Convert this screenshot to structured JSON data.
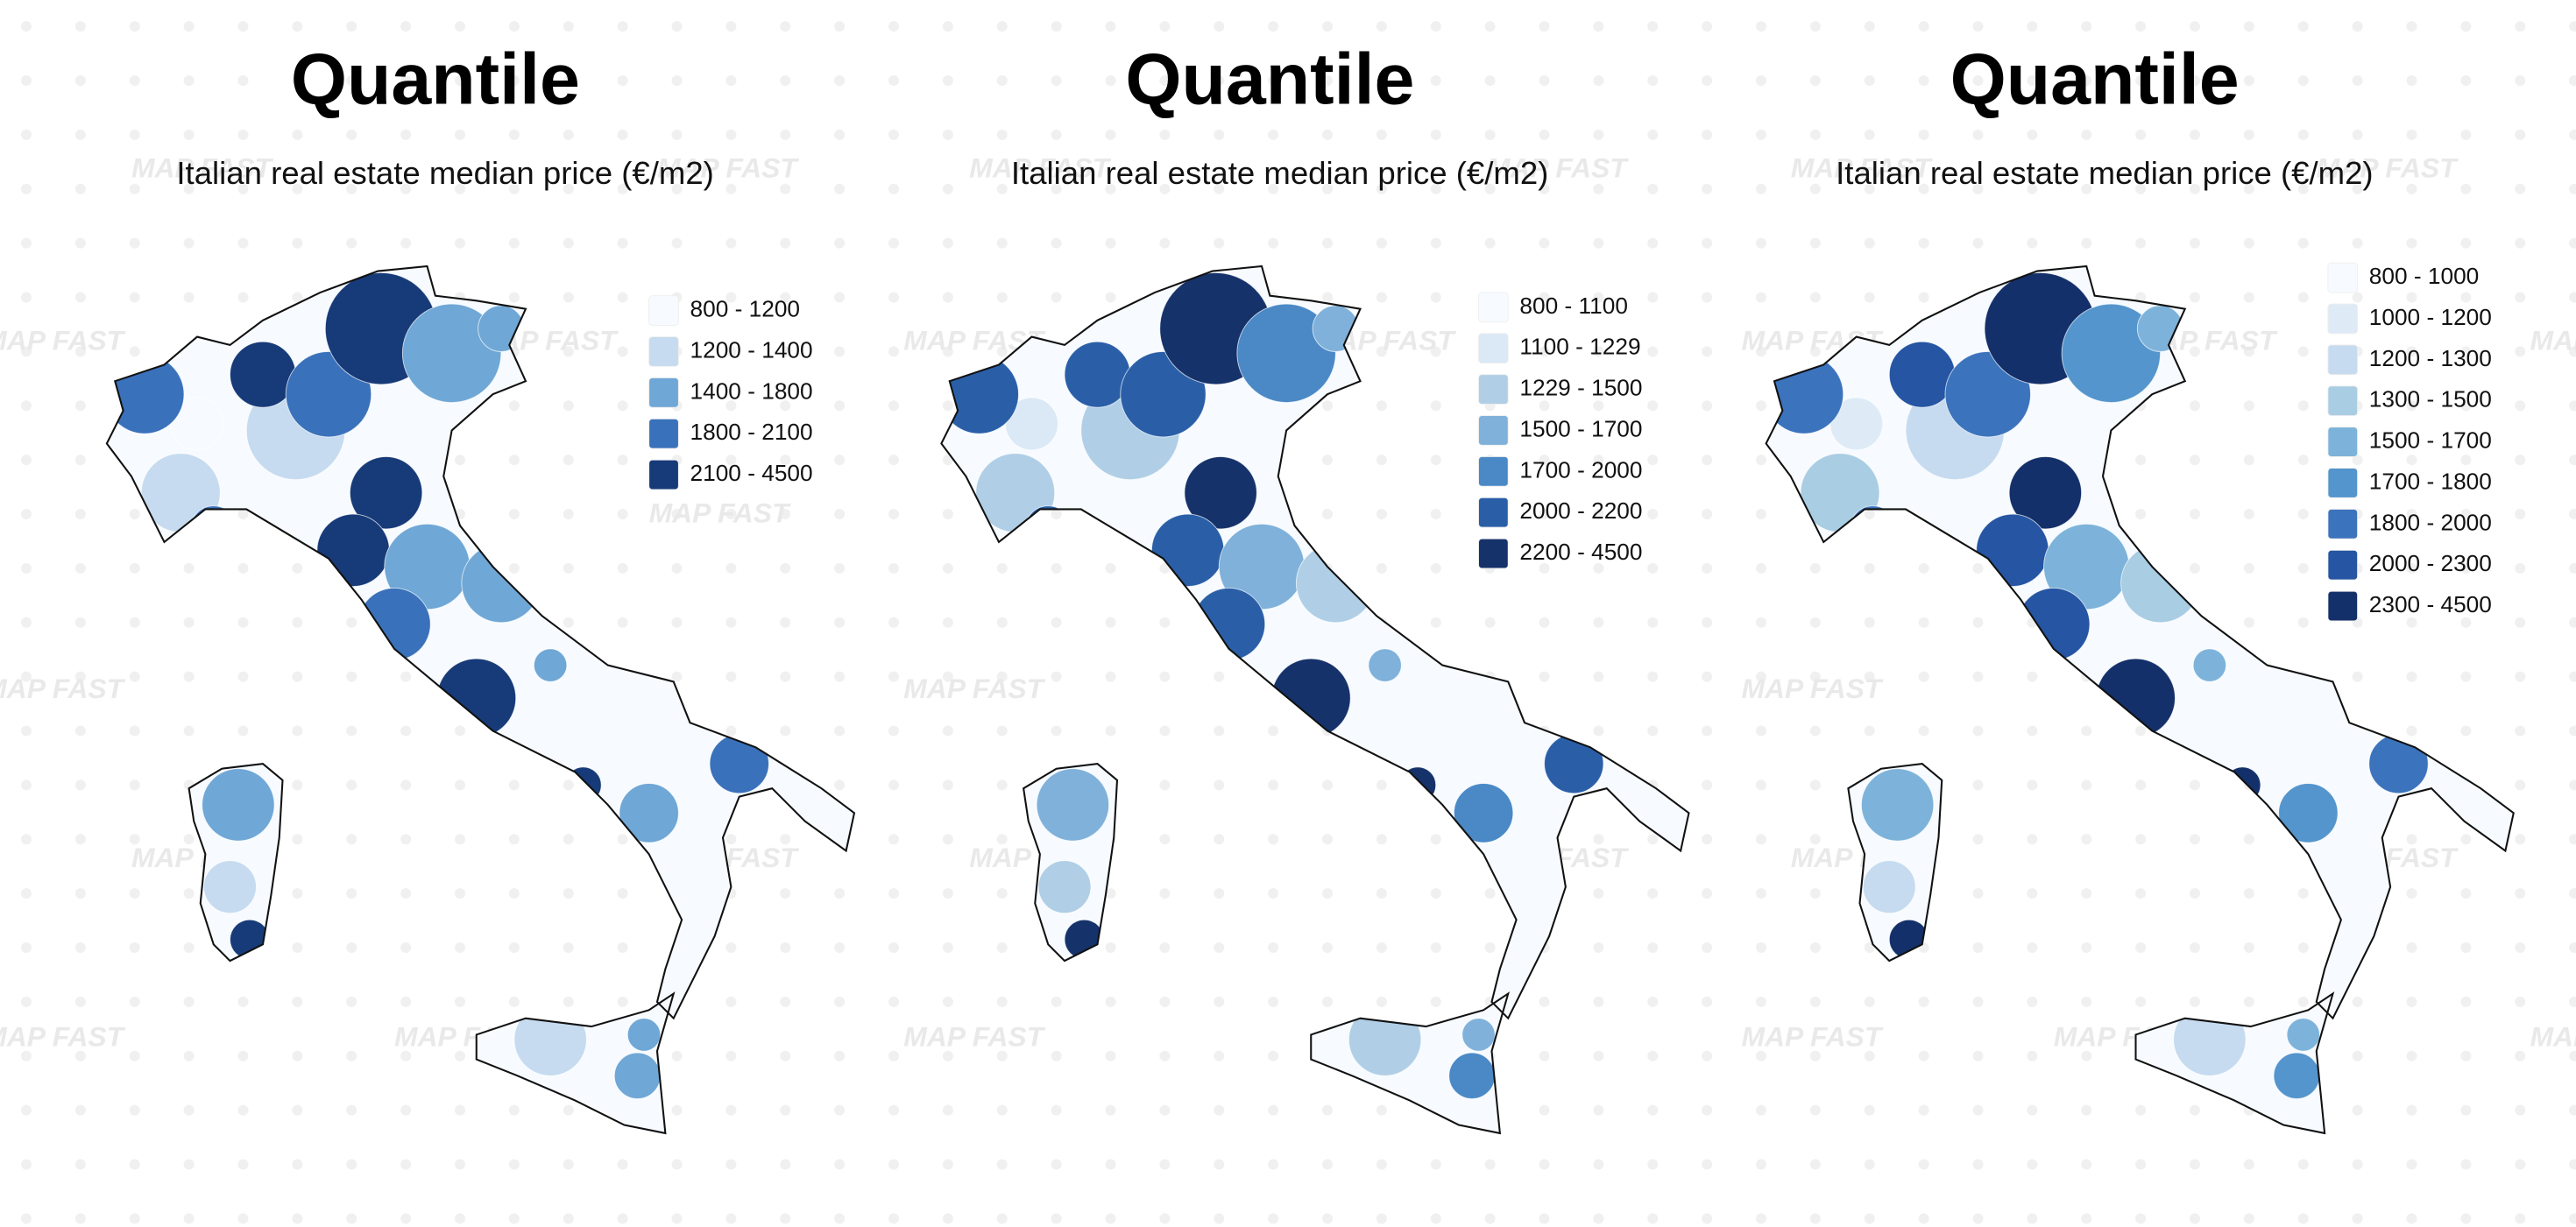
{
  "watermark": "MAP FAST",
  "panels": [
    {
      "title": "Quantile",
      "subtitle": "Italian real estate median price (€/m2)",
      "legend": [
        {
          "label": "800 - 1200",
          "color": "#f7fbff"
        },
        {
          "label": "1200 - 1400",
          "color": "#c6dbef"
        },
        {
          "label": "1400 - 1800",
          "color": "#6fa7d6"
        },
        {
          "label": "1800 - 2100",
          "color": "#3a71bb"
        },
        {
          "label": "2100 - 4500",
          "color": "#173a78"
        }
      ]
    },
    {
      "title": "Quantile",
      "subtitle": "Italian real estate median price (€/m2)",
      "legend": [
        {
          "label": "800 - 1100",
          "color": "#f7fbff"
        },
        {
          "label": "1100 - 1229",
          "color": "#dbe9f6"
        },
        {
          "label": "1229 - 1500",
          "color": "#b0cfe6"
        },
        {
          "label": "1500 - 1700",
          "color": "#7fb1da"
        },
        {
          "label": "1700 - 2000",
          "color": "#4a89c6"
        },
        {
          "label": "2000 - 2200",
          "color": "#2a5fa8"
        },
        {
          "label": "2200 - 4500",
          "color": "#16326b"
        }
      ]
    },
    {
      "title": "Quantile",
      "subtitle": "Italian real estate median price (€/m2)",
      "legend": [
        {
          "label": "800 - 1000",
          "color": "#f7fbff"
        },
        {
          "label": "1000 - 1200",
          "color": "#deebf7"
        },
        {
          "label": "1200 - 1300",
          "color": "#c6dbef"
        },
        {
          "label": "1300 - 1500",
          "color": "#a9cde3"
        },
        {
          "label": "1500 - 1700",
          "color": "#7db3da"
        },
        {
          "label": "1700 - 1800",
          "color": "#5495cd"
        },
        {
          "label": "1800 - 2000",
          "color": "#3c73bd"
        },
        {
          "label": "2000 - 2300",
          "color": "#2555a3"
        },
        {
          "label": "2300 - 4500",
          "color": "#14306a"
        }
      ]
    }
  ]
}
